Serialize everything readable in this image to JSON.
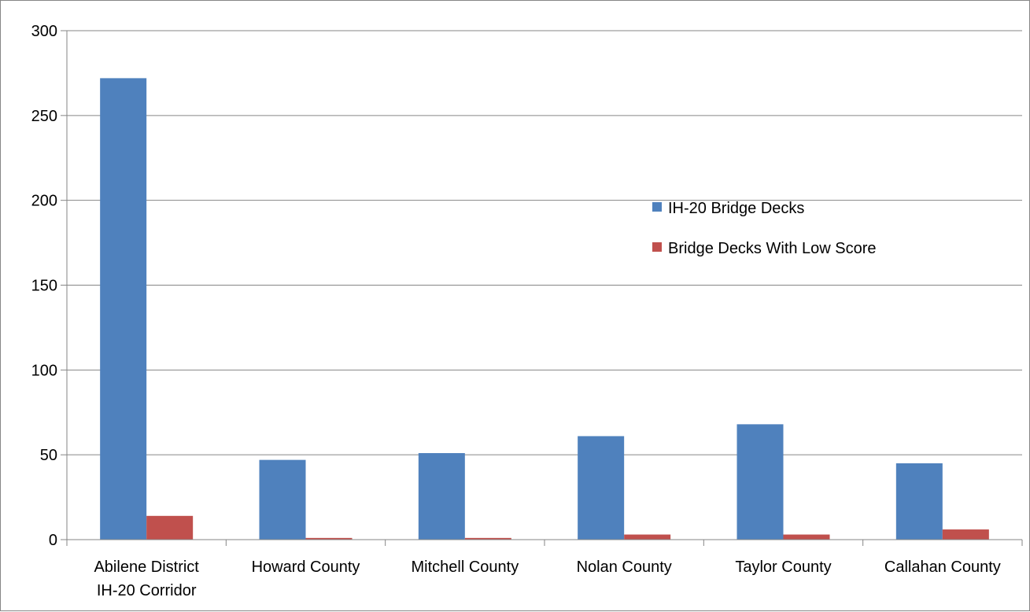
{
  "chart_data": {
    "type": "bar",
    "title": "",
    "xlabel": "",
    "ylabel": "",
    "ylim": [
      0,
      300
    ],
    "yticks": [
      0,
      50,
      100,
      150,
      200,
      250,
      300
    ],
    "grid": true,
    "legend_position": "right",
    "categories": [
      [
        "Abilene District",
        "IH-20 Corridor"
      ],
      [
        "Howard County"
      ],
      [
        "Mitchell County"
      ],
      [
        "Nolan County"
      ],
      [
        "Taylor County"
      ],
      [
        "Callahan County"
      ]
    ],
    "series": [
      {
        "name": "IH-20 Bridge Decks",
        "color": "#4F81BD",
        "values": [
          272,
          47,
          51,
          61,
          68,
          45
        ]
      },
      {
        "name": "Bridge Decks With Low Score",
        "color": "#C0504D",
        "values": [
          14,
          1,
          1,
          3,
          3,
          6
        ]
      }
    ]
  }
}
